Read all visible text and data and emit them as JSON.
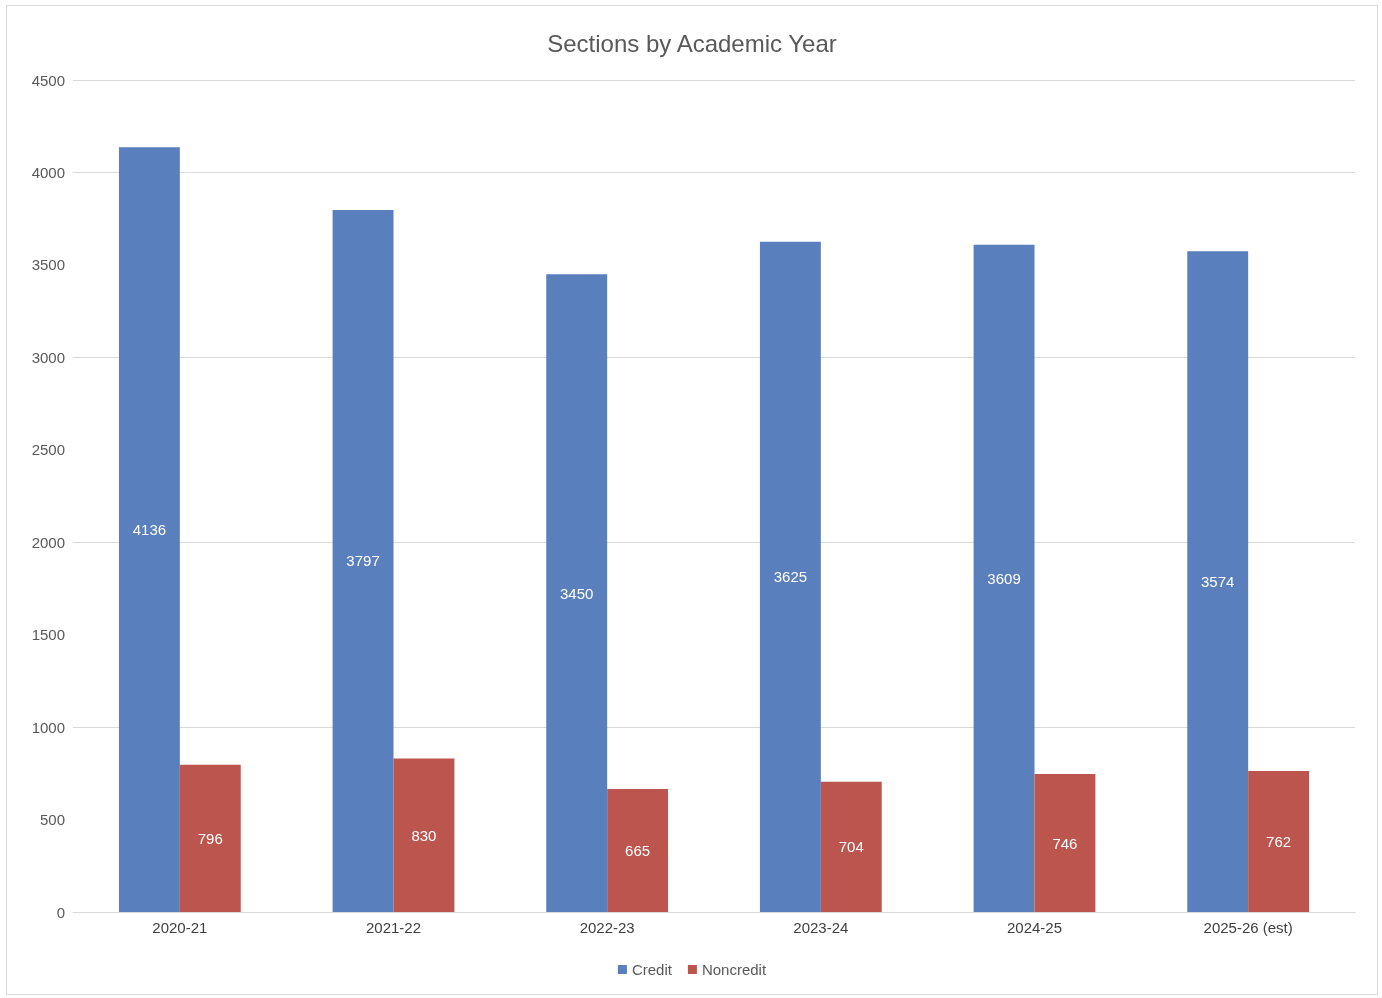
{
  "chart_data": {
    "type": "bar",
    "title": "Sections by Academic Year",
    "categories": [
      "2020-21",
      "2021-22",
      "2022-23",
      "2023-24",
      "2024-25",
      "2025-26 (est)"
    ],
    "series": [
      {
        "name": "Credit",
        "color": "#5a7fbd",
        "values": [
          4136,
          3797,
          3450,
          3625,
          3609,
          3574
        ]
      },
      {
        "name": "Noncredit",
        "color": "#bd554f",
        "values": [
          796,
          830,
          665,
          704,
          746,
          762
        ]
      }
    ],
    "ylim": [
      0,
      4500
    ],
    "yticks": [
      0,
      500,
      1000,
      1500,
      2000,
      2500,
      3000,
      3500,
      4000,
      4500
    ],
    "grid": "y",
    "legend": "bottom",
    "data_labels": true
  }
}
